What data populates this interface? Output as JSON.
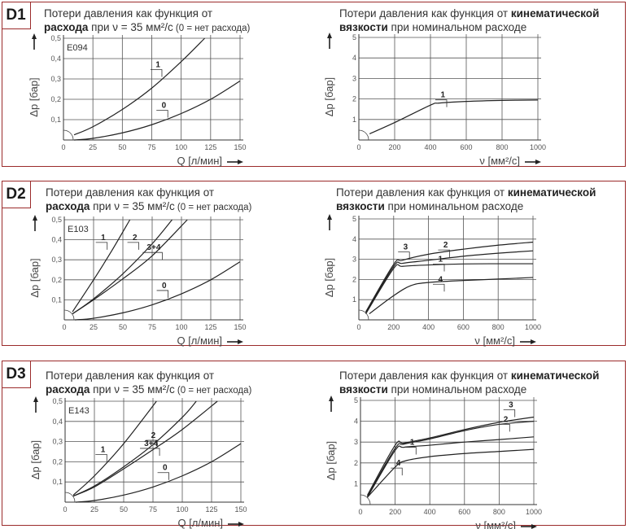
{
  "colors": {
    "border": "#9b2b2b",
    "grid": "#555555",
    "curve": "#222222"
  },
  "panels": [
    {
      "tag": "D1",
      "left_title": {
        "line1": "Потери давления как функция от",
        "bold": "расхода",
        "mid": " при ν = 35 мм²/с",
        "small": " (0 = нет расхода)"
      },
      "right_title": {
        "line1a": "Потери давления как функция от ",
        "bold1": "кинематической",
        "bold2": "вязкости",
        "rest": " при номинальном расходе"
      }
    },
    {
      "tag": "D2",
      "left_title": {
        "line1": "Потери давления как функция от",
        "bold": "расхода",
        "mid": " при ν = 35 мм²/с",
        "small": " (0 = нет расхода)"
      },
      "right_title": {
        "line1a": "Потери давления как функция от ",
        "bold1": "кинематической",
        "bold2": "вязкости",
        "rest": " при номинальном расходе"
      }
    },
    {
      "tag": "D3",
      "left_title": {
        "line1": "Потери давления как функция от",
        "bold": "расхода",
        "mid": " при ν = 35 мм²/с",
        "small": " (0 = нет расхода)"
      },
      "right_title": {
        "line1a": "Потери давления как функция от ",
        "bold1": "кинематической",
        "bold2": "вязкости",
        "rest": " при номинальном расходе"
      }
    }
  ],
  "chart_data": [
    {
      "id": "D1-flow",
      "type": "line",
      "panel": "D1",
      "title": "Потери давления как функция от расхода при ν = 35 мм²/с (0 = нет расхода)",
      "annotation": "E094",
      "xlabel": "Q [л/мин]",
      "ylabel": "Δp [бар]",
      "xlim": [
        0,
        150
      ],
      "ylim": [
        0,
        0.5
      ],
      "xticks": [
        "0",
        "25",
        "50",
        "75",
        "100",
        "125",
        "150"
      ],
      "yticks": [
        "0,1",
        "0,2",
        "0,3",
        "0,4",
        "0,5"
      ],
      "grid": true,
      "series": [
        {
          "name": "1",
          "x": [
            9,
            25,
            50,
            75,
            100,
            120
          ],
          "y": [
            0.025,
            0.065,
            0.15,
            0.255,
            0.385,
            0.5
          ],
          "label_at": [
            85,
            0.31
          ]
        },
        {
          "name": "0",
          "x": [
            9,
            25,
            50,
            75,
            100,
            125,
            150
          ],
          "y": [
            0.0,
            0.008,
            0.035,
            0.075,
            0.13,
            0.2,
            0.29
          ],
          "label_at": [
            90,
            0.11
          ]
        }
      ]
    },
    {
      "id": "D1-viscosity",
      "type": "line",
      "panel": "D1",
      "title": "Потери давления как функция от кинематической вязкости при номинальном расходе",
      "xlabel": "ν [мм²/с]",
      "ylabel": "Δp [бар]",
      "xlim": [
        0,
        1000
      ],
      "ylim": [
        0,
        5
      ],
      "xticks": [
        "0",
        "200",
        "400",
        "600",
        "800",
        "1000"
      ],
      "yticks": [
        "1",
        "2",
        "3",
        "4",
        "5"
      ],
      "grid": true,
      "series": [
        {
          "name": "1",
          "x": [
            60,
            200,
            400,
            450,
            600,
            800,
            1000
          ],
          "y": [
            0.3,
            0.85,
            1.7,
            1.8,
            1.88,
            1.93,
            1.95
          ],
          "label_at": [
            500,
            1.6
          ]
        }
      ]
    },
    {
      "id": "D2-flow",
      "type": "line",
      "panel": "D2",
      "title": "Потери давления как функция от расхода при ν = 35 мм²/с (0 = нет расхода)",
      "annotation": "E103",
      "xlabel": "Q [л/мин]",
      "ylabel": "Δp [бар]",
      "xlim": [
        0,
        150
      ],
      "ylim": [
        0,
        0.5
      ],
      "xticks": [
        "0",
        "25",
        "50",
        "75",
        "100",
        "125",
        "150"
      ],
      "yticks": [
        "0,1",
        "0,2",
        "0,3",
        "0,4",
        "0,5"
      ],
      "grid": true,
      "series": [
        {
          "name": "1",
          "x": [
            7,
            25,
            40,
            56
          ],
          "y": [
            0.04,
            0.2,
            0.34,
            0.5
          ],
          "label_at": [
            38,
            0.35
          ]
        },
        {
          "name": "2",
          "x": [
            7,
            25,
            50,
            75,
            92
          ],
          "y": [
            0.03,
            0.105,
            0.23,
            0.38,
            0.5
          ],
          "label_at": [
            65,
            0.35
          ]
        },
        {
          "name": "3+4",
          "x": [
            7,
            25,
            50,
            75,
            105
          ],
          "y": [
            0.03,
            0.1,
            0.205,
            0.32,
            0.5
          ],
          "label_at": [
            85,
            0.3
          ]
        },
        {
          "name": "0",
          "x": [
            9,
            25,
            50,
            75,
            100,
            125,
            150
          ],
          "y": [
            0.0,
            0.008,
            0.035,
            0.075,
            0.13,
            0.2,
            0.29
          ],
          "label_at": [
            90,
            0.11
          ]
        }
      ]
    },
    {
      "id": "D2-viscosity",
      "type": "line",
      "panel": "D2",
      "title": "Потери давления как функция от кинематической вязкости при номинальном расходе",
      "xlabel": "ν [мм²/с]",
      "ylabel": "Δp [бар]",
      "xlim": [
        0,
        1000
      ],
      "ylim": [
        0,
        5
      ],
      "xticks": [
        "0",
        "200",
        "400",
        "600",
        "800",
        "1000"
      ],
      "yticks": [
        "1",
        "2",
        "3",
        "4",
        "5"
      ],
      "grid": true,
      "series": [
        {
          "name": "3",
          "x": [
            40,
            200,
            250,
            400,
            600,
            800,
            1000
          ],
          "y": [
            0.4,
            2.75,
            2.95,
            3.25,
            3.5,
            3.7,
            3.85
          ],
          "label_at": [
            300,
            3.0
          ]
        },
        {
          "name": "2",
          "x": [
            40,
            200,
            250,
            400,
            600,
            800,
            1000
          ],
          "y": [
            0.35,
            2.65,
            2.8,
            2.95,
            3.15,
            3.3,
            3.42
          ],
          "label_at": [
            530,
            3.1
          ]
        },
        {
          "name": "1",
          "x": [
            40,
            200,
            250,
            400,
            600,
            800,
            1000
          ],
          "y": [
            0.3,
            2.55,
            2.65,
            2.72,
            2.77,
            2.78,
            2.78
          ],
          "label_at": [
            500,
            2.4
          ]
        },
        {
          "name": "4",
          "x": [
            60,
            200,
            300,
            400,
            600,
            800,
            1000
          ],
          "y": [
            0.3,
            1.2,
            1.7,
            1.85,
            1.95,
            2.02,
            2.1
          ],
          "label_at": [
            500,
            1.4
          ]
        }
      ]
    },
    {
      "id": "D3-flow",
      "type": "line",
      "panel": "D3",
      "title": "Потери давления как функция от расхода при ν = 35 мм²/с (0 = нет расхода)",
      "annotation": "E143",
      "xlabel": "Q [л/мин]",
      "ylabel": "Δp [бар]",
      "xlim": [
        0,
        150
      ],
      "ylim": [
        0,
        0.5
      ],
      "xticks": [
        "0",
        "25",
        "50",
        "75",
        "100",
        "125",
        "150"
      ],
      "yticks": [
        "0,1",
        "0,2",
        "0,3",
        "0,4",
        "0,5"
      ],
      "grid": true,
      "series": [
        {
          "name": "1",
          "x": [
            7,
            25,
            50,
            78
          ],
          "y": [
            0.035,
            0.13,
            0.29,
            0.5
          ],
          "label_at": [
            37,
            0.2
          ]
        },
        {
          "name": "2",
          "x": [
            7,
            25,
            50,
            75,
            100,
            112
          ],
          "y": [
            0.03,
            0.08,
            0.175,
            0.285,
            0.42,
            0.5
          ],
          "label_at": [
            80,
            0.27
          ]
        },
        {
          "name": "3+4",
          "x": [
            7,
            25,
            50,
            75,
            100,
            130
          ],
          "y": [
            0.03,
            0.075,
            0.165,
            0.26,
            0.36,
            0.5
          ],
          "label_at": [
            82,
            0.23
          ]
        },
        {
          "name": "0",
          "x": [
            9,
            25,
            50,
            75,
            100,
            125,
            150
          ],
          "y": [
            0.0,
            0.008,
            0.035,
            0.075,
            0.13,
            0.2,
            0.29
          ],
          "label_at": [
            90,
            0.11
          ]
        }
      ]
    },
    {
      "id": "D3-viscosity",
      "type": "line",
      "panel": "D3",
      "title": "Потери давления как функция от кинематической вязкости при номинальном расходе",
      "xlabel": "ν [мм²/с]",
      "ylabel": "Δp [бар]",
      "xlim": [
        0,
        1000
      ],
      "ylim": [
        0,
        5
      ],
      "xticks": [
        "0",
        "200",
        "400",
        "600",
        "800",
        "1000"
      ],
      "yticks": [
        "1",
        "2",
        "3",
        "4",
        "5"
      ],
      "grid": true,
      "series": [
        {
          "name": "3",
          "x": [
            40,
            200,
            250,
            400,
            600,
            800,
            1000
          ],
          "y": [
            0.45,
            2.85,
            2.95,
            3.2,
            3.6,
            3.95,
            4.2
          ],
          "label_at": [
            900,
            4.2
          ]
        },
        {
          "name": "2",
          "x": [
            40,
            200,
            250,
            400,
            600,
            800,
            1000
          ],
          "y": [
            0.4,
            2.7,
            2.9,
            3.15,
            3.55,
            3.85,
            4.0
          ],
          "label_at": [
            870,
            3.5
          ]
        },
        {
          "name": "1",
          "x": [
            40,
            200,
            250,
            400,
            600,
            800,
            1000
          ],
          "y": [
            0.35,
            2.6,
            2.75,
            2.85,
            3.0,
            3.12,
            3.25
          ],
          "label_at": [
            330,
            2.4
          ]
        },
        {
          "name": "4",
          "x": [
            40,
            200,
            260,
            400,
            600,
            800,
            1000
          ],
          "y": [
            0.35,
            1.8,
            2.1,
            2.3,
            2.45,
            2.55,
            2.65
          ],
          "label_at": [
            250,
            1.4
          ]
        }
      ]
    }
  ]
}
